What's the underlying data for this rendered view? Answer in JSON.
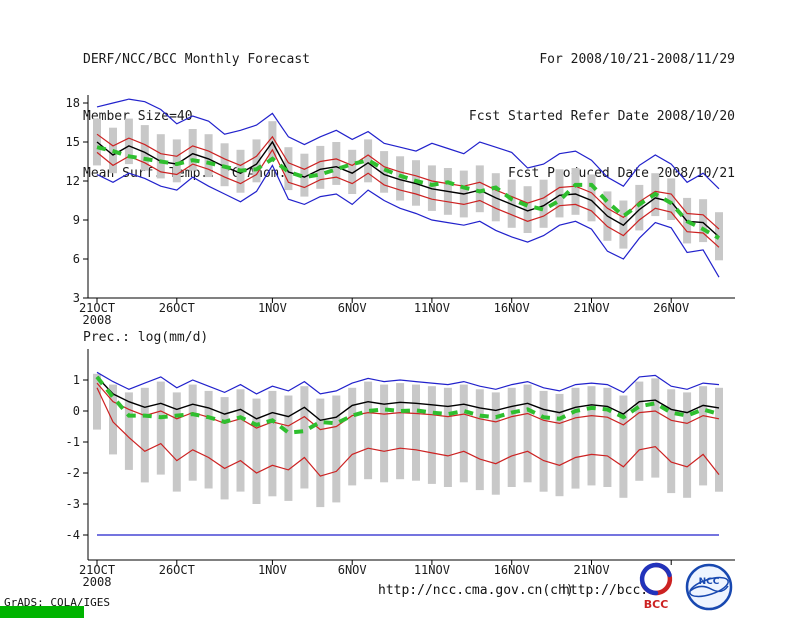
{
  "header": {
    "left_line1": "DERF/NCC/BCC Monthly Forecast",
    "left_line2": "Member Size=40",
    "right_line1": "For 2008/10/21-2008/11/29",
    "right_line2": "Fcst Started Refer Date 2008/10/20",
    "right_line3": "Fcst Produced Date 2008/10/21"
  },
  "footer": {
    "grads_stamp": "GrADS: COLA/IGES",
    "url_ncc": "http://ncc.cma.gov.cn(ch)",
    "url_bcc": "http://bcc.c",
    "bcc_logo_label": "BCC",
    "ncc_logo_label": "NCC"
  },
  "chart_data": [
    {
      "type": "line",
      "name": "surface-temp-anomaly-panel",
      "title": "Mean Surf. Temp.: °C Anom.",
      "xlabel": "",
      "ylabel": "",
      "ylim": [
        3,
        18
      ],
      "grid": false,
      "n_points": 40,
      "y_ticks": [
        18,
        15,
        12,
        9,
        6,
        3
      ],
      "x_ticks": [
        {
          "day": 0,
          "label": "21OCT",
          "sub": "2008"
        },
        {
          "day": 5,
          "label": "26OCT"
        },
        {
          "day": 11,
          "label": "1NOV"
        },
        {
          "day": 16,
          "label": "6NOV"
        },
        {
          "day": 21,
          "label": "11NOV"
        },
        {
          "day": 26,
          "label": "16NOV"
        },
        {
          "day": 31,
          "label": "21NOV"
        },
        {
          "day": 36,
          "label": "26NOV"
        }
      ],
      "colors": {
        "bars": "#c8c8c8",
        "envelope": "#2222cc",
        "bounds": "#cc2222",
        "mean": "#000000",
        "reference": "#2fbf2f"
      },
      "series": {
        "mean": [
          15.0,
          14.0,
          14.7,
          14.2,
          13.5,
          13.3,
          14.1,
          13.7,
          13.1,
          12.6,
          13.3,
          15.0,
          12.7,
          12.3,
          12.9,
          13.1,
          12.6,
          13.4,
          12.5,
          12.1,
          11.8,
          11.4,
          11.2,
          11.0,
          11.3,
          10.7,
          10.2,
          9.7,
          10.1,
          10.9,
          11.0,
          10.5,
          9.3,
          8.6,
          9.8,
          10.7,
          10.4,
          8.9,
          8.8,
          7.7
        ],
        "red_upper": [
          15.6,
          14.7,
          15.3,
          14.8,
          14.1,
          13.9,
          14.7,
          14.3,
          13.7,
          13.2,
          13.9,
          15.4,
          13.4,
          12.9,
          13.5,
          13.7,
          13.2,
          14.0,
          13.1,
          12.7,
          12.4,
          12.0,
          11.8,
          11.6,
          11.9,
          11.3,
          10.8,
          10.3,
          10.7,
          11.5,
          11.6,
          11.1,
          9.9,
          9.2,
          10.4,
          11.2,
          11.0,
          9.5,
          9.4,
          8.3
        ],
        "red_lower": [
          14.2,
          13.2,
          13.9,
          13.4,
          12.7,
          12.5,
          13.3,
          12.9,
          12.3,
          11.8,
          12.5,
          14.4,
          11.9,
          11.5,
          12.1,
          12.3,
          11.8,
          12.6,
          11.7,
          11.3,
          11.0,
          10.6,
          10.4,
          10.2,
          10.5,
          9.9,
          9.4,
          8.9,
          9.3,
          10.1,
          10.2,
          9.7,
          8.5,
          7.8,
          9.0,
          9.9,
          9.6,
          8.1,
          8.0,
          6.9
        ],
        "blue_upper": [
          17.7,
          18.0,
          18.3,
          18.1,
          17.5,
          16.4,
          17.0,
          16.6,
          15.6,
          15.9,
          16.3,
          17.2,
          15.4,
          14.8,
          15.4,
          15.9,
          15.2,
          15.8,
          14.9,
          14.6,
          14.3,
          14.9,
          14.5,
          14.1,
          15.0,
          14.6,
          14.2,
          13.0,
          13.3,
          14.1,
          14.3,
          13.6,
          12.3,
          11.6,
          13.2,
          14.0,
          13.3,
          11.9,
          12.6,
          11.4
        ],
        "blue_lower": [
          12.5,
          11.9,
          12.6,
          12.2,
          11.6,
          11.3,
          12.3,
          11.6,
          11.0,
          10.4,
          11.2,
          13.2,
          10.6,
          10.2,
          10.8,
          11.0,
          10.2,
          11.3,
          10.5,
          9.9,
          9.5,
          9.0,
          8.8,
          8.6,
          8.9,
          8.2,
          7.7,
          7.3,
          7.8,
          8.6,
          8.9,
          8.3,
          6.6,
          6.0,
          7.6,
          8.8,
          8.4,
          6.5,
          6.7,
          4.6
        ],
        "obs_green": [
          14.6,
          14.3,
          13.9,
          13.7,
          13.5,
          13.3,
          13.6,
          13.4,
          13.1,
          12.8,
          12.9,
          13.7,
          12.7,
          12.3,
          12.5,
          12.9,
          13.3,
          13.6,
          12.9,
          12.4,
          12.0,
          11.7,
          11.9,
          11.5,
          11.2,
          11.5,
          10.6,
          10.1,
          9.8,
          10.5,
          11.7,
          11.7,
          10.4,
          9.3,
          10.2,
          11.0,
          10.3,
          8.9,
          8.3,
          7.6
        ],
        "bar_low": [
          13.2,
          12.6,
          13.3,
          12.8,
          12.2,
          11.9,
          12.8,
          12.3,
          11.6,
          11.1,
          11.9,
          13.7,
          11.3,
          10.8,
          11.4,
          11.7,
          11.0,
          11.9,
          11.1,
          10.5,
          10.1,
          9.7,
          9.4,
          9.2,
          9.6,
          8.9,
          8.4,
          8.0,
          8.4,
          9.2,
          9.4,
          8.9,
          7.4,
          6.8,
          8.2,
          9.3,
          9.0,
          7.2,
          7.3,
          5.9
        ],
        "bar_high": [
          16.8,
          16.1,
          16.8,
          16.3,
          15.6,
          15.2,
          16.0,
          15.6,
          14.9,
          14.4,
          15.2,
          16.6,
          14.6,
          14.1,
          14.7,
          15.0,
          14.4,
          15.2,
          14.3,
          13.9,
          13.6,
          13.2,
          13.0,
          12.8,
          13.2,
          12.6,
          12.1,
          11.6,
          12.1,
          12.9,
          13.0,
          12.5,
          11.2,
          10.5,
          11.7,
          12.6,
          12.2,
          10.7,
          10.6,
          9.6
        ]
      }
    },
    {
      "type": "line",
      "name": "precipitation-panel",
      "title": "Prec.: log(mm/d)",
      "xlabel": "",
      "ylabel": "",
      "ylim": [
        -4.8,
        1.6
      ],
      "grid": false,
      "n_points": 40,
      "y_ticks": [
        1,
        0,
        -1,
        -2,
        -3,
        -4
      ],
      "x_ticks": [
        {
          "day": 0,
          "label": "21OCT",
          "sub": "2008"
        },
        {
          "day": 5,
          "label": "26OCT"
        },
        {
          "day": 11,
          "label": "1NOV"
        },
        {
          "day": 16,
          "label": "6NOV"
        },
        {
          "day": 21,
          "label": "11NOV"
        },
        {
          "day": 26,
          "label": "16NOV"
        },
        {
          "day": 31,
          "label": "21NOV"
        },
        {
          "day": 36,
          "label": ""
        }
      ],
      "colors": {
        "bars": "#c8c8c8",
        "envelope": "#2222cc",
        "bounds": "#cc2222",
        "mean": "#000000",
        "reference": "#2fbf2f"
      },
      "series": {
        "mean": [
          1.1,
          0.55,
          0.3,
          0.12,
          0.25,
          0.05,
          0.22,
          0.1,
          -0.1,
          0.05,
          -0.25,
          -0.05,
          -0.18,
          0.12,
          -0.3,
          -0.2,
          0.18,
          0.3,
          0.22,
          0.28,
          0.25,
          0.2,
          0.15,
          0.22,
          0.1,
          0.02,
          0.15,
          0.25,
          0.05,
          -0.05,
          0.12,
          0.2,
          0.15,
          -0.1,
          0.3,
          0.35,
          0.05,
          -0.05,
          0.18,
          0.1
        ],
        "red_upper": [
          0.9,
          0.3,
          0.05,
          -0.15,
          0.0,
          -0.25,
          -0.05,
          -0.2,
          -0.4,
          -0.25,
          -0.55,
          -0.35,
          -0.48,
          -0.18,
          -0.6,
          -0.5,
          -0.15,
          -0.05,
          -0.1,
          -0.05,
          -0.08,
          -0.12,
          -0.18,
          -0.1,
          -0.25,
          -0.35,
          -0.18,
          -0.08,
          -0.3,
          -0.4,
          -0.22,
          -0.15,
          -0.2,
          -0.45,
          -0.05,
          0.0,
          -0.3,
          -0.4,
          -0.15,
          -0.25
        ],
        "red_lower": [
          0.75,
          -0.35,
          -0.85,
          -1.3,
          -1.05,
          -1.6,
          -1.25,
          -1.5,
          -1.85,
          -1.6,
          -2.0,
          -1.75,
          -1.9,
          -1.5,
          -2.1,
          -1.95,
          -1.4,
          -1.2,
          -1.3,
          -1.2,
          -1.25,
          -1.35,
          -1.45,
          -1.3,
          -1.55,
          -1.7,
          -1.45,
          -1.3,
          -1.6,
          -1.75,
          -1.5,
          -1.4,
          -1.45,
          -1.8,
          -1.25,
          -1.15,
          -1.65,
          -1.8,
          -1.4,
          -2.05
        ],
        "blue_upper": [
          1.25,
          0.95,
          0.7,
          0.9,
          1.1,
          0.75,
          1.0,
          0.8,
          0.6,
          0.85,
          0.55,
          0.8,
          0.65,
          0.95,
          0.55,
          0.65,
          0.9,
          1.05,
          0.95,
          1.0,
          0.95,
          0.9,
          0.85,
          0.95,
          0.8,
          0.7,
          0.85,
          0.95,
          0.75,
          0.65,
          0.85,
          0.9,
          0.85,
          0.6,
          1.1,
          1.15,
          0.8,
          0.7,
          0.9,
          0.85
        ],
        "blue_lower": [
          -4.0,
          -4.0,
          -4.0,
          -4.0,
          -4.0,
          -4.0,
          -4.0,
          -4.0,
          -4.0,
          -4.0,
          -4.0,
          -4.0,
          -4.0,
          -4.0,
          -4.0,
          -4.0,
          -4.0,
          -4.0,
          -4.0,
          -4.0,
          -4.0,
          -4.0,
          -4.0,
          -4.0,
          -4.0,
          -4.0,
          -4.0,
          -4.0,
          -4.0,
          -4.0,
          -4.0,
          -4.0,
          -4.0,
          -4.0,
          -4.0,
          -4.0,
          -4.0,
          -4.0,
          -4.0,
          -4.0
        ],
        "obs_green": [
          1.1,
          0.45,
          -0.15,
          -0.15,
          -0.2,
          -0.15,
          -0.1,
          -0.2,
          -0.35,
          -0.2,
          -0.45,
          -0.3,
          -0.7,
          -0.65,
          -0.35,
          -0.4,
          -0.15,
          0.0,
          0.05,
          0.0,
          0.02,
          -0.05,
          -0.1,
          0.0,
          -0.15,
          -0.2,
          -0.05,
          0.05,
          -0.2,
          -0.25,
          0.0,
          0.1,
          0.05,
          -0.2,
          0.15,
          0.25,
          -0.05,
          -0.15,
          0.05,
          -0.1
        ],
        "bar_low": [
          -0.6,
          -1.4,
          -1.9,
          -2.3,
          -2.05,
          -2.6,
          -2.25,
          -2.5,
          -2.85,
          -2.6,
          -3.0,
          -2.75,
          -2.9,
          -2.5,
          -3.1,
          -2.95,
          -2.4,
          -2.2,
          -2.3,
          -2.2,
          -2.25,
          -2.35,
          -2.45,
          -2.3,
          -2.55,
          -2.7,
          -2.45,
          -2.3,
          -2.6,
          -2.75,
          -2.5,
          -2.4,
          -2.45,
          -2.8,
          -2.25,
          -2.15,
          -2.65,
          -2.8,
          -2.4,
          -2.6
        ],
        "bar_high": [
          1.2,
          0.85,
          0.6,
          0.75,
          0.95,
          0.6,
          0.85,
          0.65,
          0.45,
          0.7,
          0.4,
          0.65,
          0.5,
          0.8,
          0.4,
          0.5,
          0.75,
          0.95,
          0.85,
          0.9,
          0.85,
          0.8,
          0.75,
          0.85,
          0.7,
          0.6,
          0.75,
          0.85,
          0.65,
          0.55,
          0.75,
          0.8,
          0.75,
          0.5,
          0.95,
          1.05,
          0.7,
          0.6,
          0.8,
          0.75
        ]
      }
    }
  ]
}
